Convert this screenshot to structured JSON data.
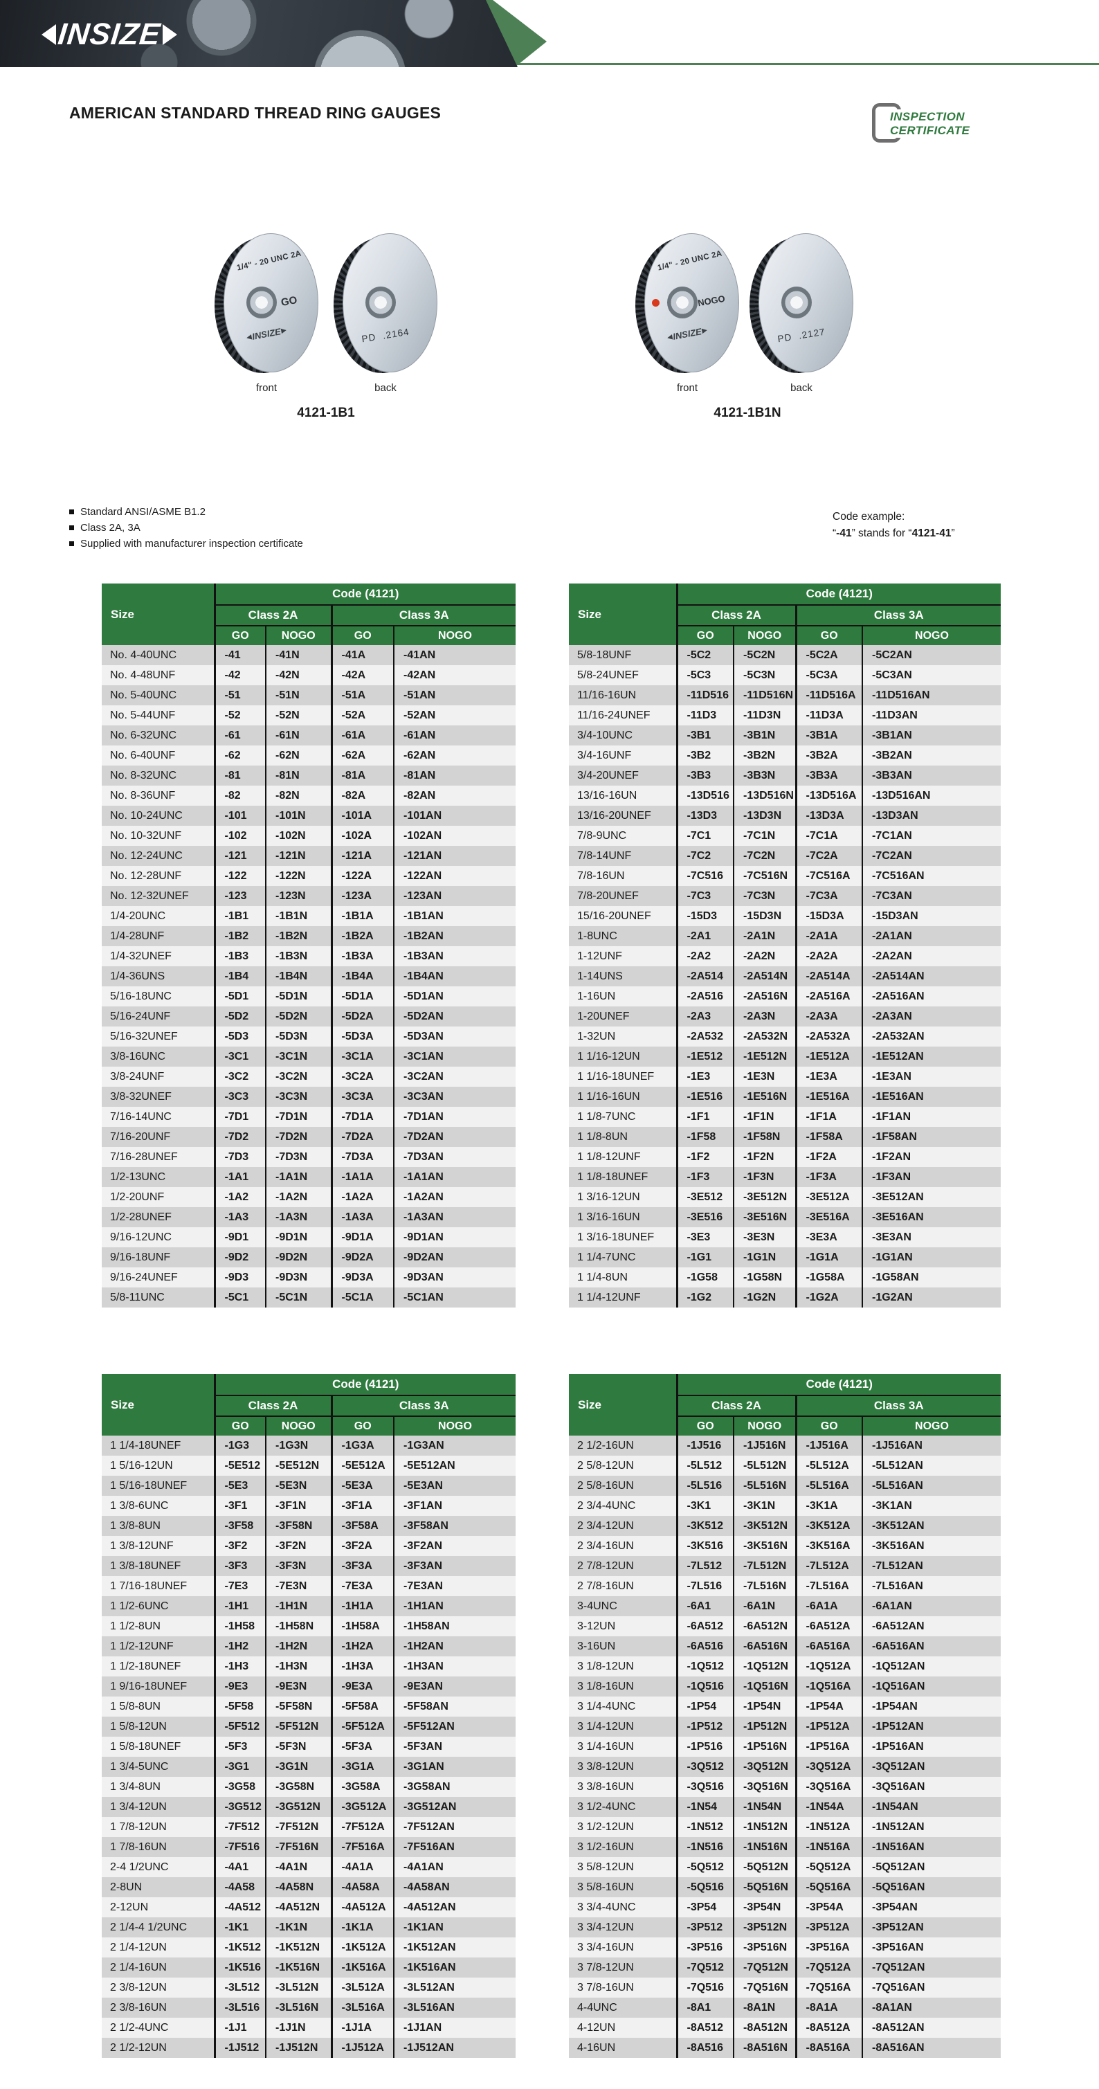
{
  "header": {
    "brand": "INSIZE",
    "page_title": "AMERICAN STANDARD THREAD RING GAUGES"
  },
  "badge": {
    "line1": "INSPECTION",
    "line2": "CERTIFICATE"
  },
  "products": [
    {
      "model": "4121-1B1",
      "front_label": "front",
      "back_label": "back",
      "spec": "1/4\" - 20 UNC 2A",
      "go_label": "GO",
      "brand": "INSIZE",
      "pd_label": "PD",
      "pd_value": ".2164"
    },
    {
      "model": "4121-1B1N",
      "front_label": "front",
      "back_label": "back",
      "spec": "1/4\" - 20 UNC 2A",
      "go_label": "NOGO",
      "brand": "INSIZE",
      "pd_label": "PD",
      "pd_value": ".2127"
    }
  ],
  "features": [
    "Standard ANSI/ASME B1.2",
    "Class 2A, 3A",
    "Supplied with manufacturer inspection certificate"
  ],
  "code_example": {
    "title": "Code example:",
    "parts": [
      "“",
      "-41",
      "” stands for “",
      "4121-41",
      "”"
    ]
  },
  "tables": {
    "header": {
      "size": "Size",
      "code": "Code (4121)",
      "class2a": "Class 2A",
      "class3a": "Class 3A",
      "go": "GO",
      "nogo": "NOGO"
    },
    "top_left": {
      "rows": [
        [
          "No. 4-40UNC",
          "-41",
          "-41N",
          "-41A",
          "-41AN"
        ],
        [
          "No. 4-48UNF",
          "-42",
          "-42N",
          "-42A",
          "-42AN"
        ],
        [
          "No. 5-40UNC",
          "-51",
          "-51N",
          "-51A",
          "-51AN"
        ],
        [
          "No. 5-44UNF",
          "-52",
          "-52N",
          "-52A",
          "-52AN"
        ],
        [
          "No. 6-32UNC",
          "-61",
          "-61N",
          "-61A",
          "-61AN"
        ],
        [
          "No. 6-40UNF",
          "-62",
          "-62N",
          "-62A",
          "-62AN"
        ],
        [
          "No. 8-32UNC",
          "-81",
          "-81N",
          "-81A",
          "-81AN"
        ],
        [
          "No. 8-36UNF",
          "-82",
          "-82N",
          "-82A",
          "-82AN"
        ],
        [
          "No. 10-24UNC",
          "-101",
          "-101N",
          "-101A",
          "-101AN"
        ],
        [
          "No. 10-32UNF",
          "-102",
          "-102N",
          "-102A",
          "-102AN"
        ],
        [
          "No. 12-24UNC",
          "-121",
          "-121N",
          "-121A",
          "-121AN"
        ],
        [
          "No. 12-28UNF",
          "-122",
          "-122N",
          "-122A",
          "-122AN"
        ],
        [
          "No. 12-32UNEF",
          "-123",
          "-123N",
          "-123A",
          "-123AN"
        ],
        [
          "1/4-20UNC",
          "-1B1",
          "-1B1N",
          "-1B1A",
          "-1B1AN"
        ],
        [
          "1/4-28UNF",
          "-1B2",
          "-1B2N",
          "-1B2A",
          "-1B2AN"
        ],
        [
          "1/4-32UNEF",
          "-1B3",
          "-1B3N",
          "-1B3A",
          "-1B3AN"
        ],
        [
          "1/4-36UNS",
          "-1B4",
          "-1B4N",
          "-1B4A",
          "-1B4AN"
        ],
        [
          "5/16-18UNC",
          "-5D1",
          "-5D1N",
          "-5D1A",
          "-5D1AN"
        ],
        [
          "5/16-24UNF",
          "-5D2",
          "-5D2N",
          "-5D2A",
          "-5D2AN"
        ],
        [
          "5/16-32UNEF",
          "-5D3",
          "-5D3N",
          "-5D3A",
          "-5D3AN"
        ],
        [
          "3/8-16UNC",
          "-3C1",
          "-3C1N",
          "-3C1A",
          "-3C1AN"
        ],
        [
          "3/8-24UNF",
          "-3C2",
          "-3C2N",
          "-3C2A",
          "-3C2AN"
        ],
        [
          "3/8-32UNEF",
          "-3C3",
          "-3C3N",
          "-3C3A",
          "-3C3AN"
        ],
        [
          "7/16-14UNC",
          "-7D1",
          "-7D1N",
          "-7D1A",
          "-7D1AN"
        ],
        [
          "7/16-20UNF",
          "-7D2",
          "-7D2N",
          "-7D2A",
          "-7D2AN"
        ],
        [
          "7/16-28UNEF",
          "-7D3",
          "-7D3N",
          "-7D3A",
          "-7D3AN"
        ],
        [
          "1/2-13UNC",
          "-1A1",
          "-1A1N",
          "-1A1A",
          "-1A1AN"
        ],
        [
          "1/2-20UNF",
          "-1A2",
          "-1A2N",
          "-1A2A",
          "-1A2AN"
        ],
        [
          "1/2-28UNEF",
          "-1A3",
          "-1A3N",
          "-1A3A",
          "-1A3AN"
        ],
        [
          "9/16-12UNC",
          "-9D1",
          "-9D1N",
          "-9D1A",
          "-9D1AN"
        ],
        [
          "9/16-18UNF",
          "-9D2",
          "-9D2N",
          "-9D2A",
          "-9D2AN"
        ],
        [
          "9/16-24UNEF",
          "-9D3",
          "-9D3N",
          "-9D3A",
          "-9D3AN"
        ],
        [
          "5/8-11UNC",
          "-5C1",
          "-5C1N",
          "-5C1A",
          "-5C1AN"
        ]
      ]
    },
    "top_right": {
      "rows": [
        [
          "5/8-18UNF",
          "-5C2",
          "-5C2N",
          "-5C2A",
          "-5C2AN"
        ],
        [
          "5/8-24UNEF",
          "-5C3",
          "-5C3N",
          "-5C3A",
          "-5C3AN"
        ],
        [
          "11/16-16UN",
          "-11D516",
          "-11D516N",
          "-11D516A",
          "-11D516AN"
        ],
        [
          "11/16-24UNEF",
          "-11D3",
          "-11D3N",
          "-11D3A",
          "-11D3AN"
        ],
        [
          "3/4-10UNC",
          "-3B1",
          "-3B1N",
          "-3B1A",
          "-3B1AN"
        ],
        [
          "3/4-16UNF",
          "-3B2",
          "-3B2N",
          "-3B2A",
          "-3B2AN"
        ],
        [
          "3/4-20UNEF",
          "-3B3",
          "-3B3N",
          "-3B3A",
          "-3B3AN"
        ],
        [
          "13/16-16UN",
          "-13D516",
          "-13D516N",
          "-13D516A",
          "-13D516AN"
        ],
        [
          "13/16-20UNEF",
          "-13D3",
          "-13D3N",
          "-13D3A",
          "-13D3AN"
        ],
        [
          "7/8-9UNC",
          "-7C1",
          "-7C1N",
          "-7C1A",
          "-7C1AN"
        ],
        [
          "7/8-14UNF",
          "-7C2",
          "-7C2N",
          "-7C2A",
          "-7C2AN"
        ],
        [
          "7/8-16UN",
          "-7C516",
          "-7C516N",
          "-7C516A",
          "-7C516AN"
        ],
        [
          "7/8-20UNEF",
          "-7C3",
          "-7C3N",
          "-7C3A",
          "-7C3AN"
        ],
        [
          "15/16-20UNEF",
          "-15D3",
          "-15D3N",
          "-15D3A",
          "-15D3AN"
        ],
        [
          "1-8UNC",
          "-2A1",
          "-2A1N",
          "-2A1A",
          "-2A1AN"
        ],
        [
          "1-12UNF",
          "-2A2",
          "-2A2N",
          "-2A2A",
          "-2A2AN"
        ],
        [
          "1-14UNS",
          "-2A514",
          "-2A514N",
          "-2A514A",
          "-2A514AN"
        ],
        [
          "1-16UN",
          "-2A516",
          "-2A516N",
          "-2A516A",
          "-2A516AN"
        ],
        [
          "1-20UNEF",
          "-2A3",
          "-2A3N",
          "-2A3A",
          "-2A3AN"
        ],
        [
          "1-32UN",
          "-2A532",
          "-2A532N",
          "-2A532A",
          "-2A532AN"
        ],
        [
          "1 1/16-12UN",
          "-1E512",
          "-1E512N",
          "-1E512A",
          "-1E512AN"
        ],
        [
          "1 1/16-18UNEF",
          "-1E3",
          "-1E3N",
          "-1E3A",
          "-1E3AN"
        ],
        [
          "1 1/16-16UN",
          "-1E516",
          "-1E516N",
          "-1E516A",
          "-1E516AN"
        ],
        [
          "1 1/8-7UNC",
          "-1F1",
          "-1F1N",
          "-1F1A",
          "-1F1AN"
        ],
        [
          "1 1/8-8UN",
          "-1F58",
          "-1F58N",
          "-1F58A",
          "-1F58AN"
        ],
        [
          "1 1/8-12UNF",
          "-1F2",
          "-1F2N",
          "-1F2A",
          "-1F2AN"
        ],
        [
          "1 1/8-18UNEF",
          "-1F3",
          "-1F3N",
          "-1F3A",
          "-1F3AN"
        ],
        [
          "1 3/16-12UN",
          "-3E512",
          "-3E512N",
          "-3E512A",
          "-3E512AN"
        ],
        [
          "1 3/16-16UN",
          "-3E516",
          "-3E516N",
          "-3E516A",
          "-3E516AN"
        ],
        [
          "1 3/16-18UNEF",
          "-3E3",
          "-3E3N",
          "-3E3A",
          "-3E3AN"
        ],
        [
          "1 1/4-7UNC",
          "-1G1",
          "-1G1N",
          "-1G1A",
          "-1G1AN"
        ],
        [
          "1 1/4-8UN",
          "-1G58",
          "-1G58N",
          "-1G58A",
          "-1G58AN"
        ],
        [
          "1 1/4-12UNF",
          "-1G2",
          "-1G2N",
          "-1G2A",
          "-1G2AN"
        ]
      ]
    },
    "bottom_left": {
      "rows": [
        [
          "1 1/4-18UNEF",
          "-1G3",
          "-1G3N",
          "-1G3A",
          "-1G3AN"
        ],
        [
          "1 5/16-12UN",
          "-5E512",
          "-5E512N",
          "-5E512A",
          "-5E512AN"
        ],
        [
          "1 5/16-18UNEF",
          "-5E3",
          "-5E3N",
          "-5E3A",
          "-5E3AN"
        ],
        [
          "1 3/8-6UNC",
          "-3F1",
          "-3F1N",
          "-3F1A",
          "-3F1AN"
        ],
        [
          "1 3/8-8UN",
          "-3F58",
          "-3F58N",
          "-3F58A",
          "-3F58AN"
        ],
        [
          "1 3/8-12UNF",
          "-3F2",
          "-3F2N",
          "-3F2A",
          "-3F2AN"
        ],
        [
          "1 3/8-18UNEF",
          "-3F3",
          "-3F3N",
          "-3F3A",
          "-3F3AN"
        ],
        [
          "1 7/16-18UNEF",
          "-7E3",
          "-7E3N",
          "-7E3A",
          "-7E3AN"
        ],
        [
          "1 1/2-6UNC",
          "-1H1",
          "-1H1N",
          "-1H1A",
          "-1H1AN"
        ],
        [
          "1 1/2-8UN",
          "-1H58",
          "-1H58N",
          "-1H58A",
          "-1H58AN"
        ],
        [
          "1 1/2-12UNF",
          "-1H2",
          "-1H2N",
          "-1H2A",
          "-1H2AN"
        ],
        [
          "1 1/2-18UNEF",
          "-1H3",
          "-1H3N",
          "-1H3A",
          "-1H3AN"
        ],
        [
          "1 9/16-18UNEF",
          "-9E3",
          "-9E3N",
          "-9E3A",
          "-9E3AN"
        ],
        [
          "1 5/8-8UN",
          "-5F58",
          "-5F58N",
          "-5F58A",
          "-5F58AN"
        ],
        [
          "1 5/8-12UN",
          "-5F512",
          "-5F512N",
          "-5F512A",
          "-5F512AN"
        ],
        [
          "1 5/8-18UNEF",
          "-5F3",
          "-5F3N",
          "-5F3A",
          "-5F3AN"
        ],
        [
          "1 3/4-5UNC",
          "-3G1",
          "-3G1N",
          "-3G1A",
          "-3G1AN"
        ],
        [
          "1 3/4-8UN",
          "-3G58",
          "-3G58N",
          "-3G58A",
          "-3G58AN"
        ],
        [
          "1 3/4-12UN",
          "-3G512",
          "-3G512N",
          "-3G512A",
          "-3G512AN"
        ],
        [
          "1 7/8-12UN",
          "-7F512",
          "-7F512N",
          "-7F512A",
          "-7F512AN"
        ],
        [
          "1 7/8-16UN",
          "-7F516",
          "-7F516N",
          "-7F516A",
          "-7F516AN"
        ],
        [
          "2-4 1/2UNC",
          "-4A1",
          "-4A1N",
          "-4A1A",
          "-4A1AN"
        ],
        [
          "2-8UN",
          "-4A58",
          "-4A58N",
          "-4A58A",
          "-4A58AN"
        ],
        [
          "2-12UN",
          "-4A512",
          "-4A512N",
          "-4A512A",
          "-4A512AN"
        ],
        [
          "2 1/4-4 1/2UNC",
          "-1K1",
          "-1K1N",
          "-1K1A",
          "-1K1AN"
        ],
        [
          "2 1/4-12UN",
          "-1K512",
          "-1K512N",
          "-1K512A",
          "-1K512AN"
        ],
        [
          "2 1/4-16UN",
          "-1K516",
          "-1K516N",
          "-1K516A",
          "-1K516AN"
        ],
        [
          "2 3/8-12UN",
          "-3L512",
          "-3L512N",
          "-3L512A",
          "-3L512AN"
        ],
        [
          "2 3/8-16UN",
          "-3L516",
          "-3L516N",
          "-3L516A",
          "-3L516AN"
        ],
        [
          "2 1/2-4UNC",
          "-1J1",
          "-1J1N",
          "-1J1A",
          "-1J1AN"
        ],
        [
          "2 1/2-12UN",
          "-1J512",
          "-1J512N",
          "-1J512A",
          "-1J512AN"
        ]
      ]
    },
    "bottom_right": {
      "rows": [
        [
          "2 1/2-16UN",
          "-1J516",
          "-1J516N",
          "-1J516A",
          "-1J516AN"
        ],
        [
          "2 5/8-12UN",
          "-5L512",
          "-5L512N",
          "-5L512A",
          "-5L512AN"
        ],
        [
          "2 5/8-16UN",
          "-5L516",
          "-5L516N",
          "-5L516A",
          "-5L516AN"
        ],
        [
          "2 3/4-4UNC",
          "-3K1",
          "-3K1N",
          "-3K1A",
          "-3K1AN"
        ],
        [
          "2 3/4-12UN",
          "-3K512",
          "-3K512N",
          "-3K512A",
          "-3K512AN"
        ],
        [
          "2 3/4-16UN",
          "-3K516",
          "-3K516N",
          "-3K516A",
          "-3K516AN"
        ],
        [
          "2 7/8-12UN",
          "-7L512",
          "-7L512N",
          "-7L512A",
          "-7L512AN"
        ],
        [
          "2 7/8-16UN",
          "-7L516",
          "-7L516N",
          "-7L516A",
          "-7L516AN"
        ],
        [
          "3-4UNC",
          "-6A1",
          "-6A1N",
          "-6A1A",
          "-6A1AN"
        ],
        [
          "3-12UN",
          "-6A512",
          "-6A512N",
          "-6A512A",
          "-6A512AN"
        ],
        [
          "3-16UN",
          "-6A516",
          "-6A516N",
          "-6A516A",
          "-6A516AN"
        ],
        [
          "3 1/8-12UN",
          "-1Q512",
          "-1Q512N",
          "-1Q512A",
          "-1Q512AN"
        ],
        [
          "3 1/8-16UN",
          "-1Q516",
          "-1Q516N",
          "-1Q516A",
          "-1Q516AN"
        ],
        [
          "3 1/4-4UNC",
          "-1P54",
          "-1P54N",
          "-1P54A",
          "-1P54AN"
        ],
        [
          "3 1/4-12UN",
          "-1P512",
          "-1P512N",
          "-1P512A",
          "-1P512AN"
        ],
        [
          "3 1/4-16UN",
          "-1P516",
          "-1P516N",
          "-1P516A",
          "-1P516AN"
        ],
        [
          "3 3/8-12UN",
          "-3Q512",
          "-3Q512N",
          "-3Q512A",
          "-3Q512AN"
        ],
        [
          "3 3/8-16UN",
          "-3Q516",
          "-3Q516N",
          "-3Q516A",
          "-3Q516AN"
        ],
        [
          "3 1/2-4UNC",
          "-1N54",
          "-1N54N",
          "-1N54A",
          "-1N54AN"
        ],
        [
          "3 1/2-12UN",
          "-1N512",
          "-1N512N",
          "-1N512A",
          "-1N512AN"
        ],
        [
          "3 1/2-16UN",
          "-1N516",
          "-1N516N",
          "-1N516A",
          "-1N516AN"
        ],
        [
          "3 5/8-12UN",
          "-5Q512",
          "-5Q512N",
          "-5Q512A",
          "-5Q512AN"
        ],
        [
          "3 5/8-16UN",
          "-5Q516",
          "-5Q516N",
          "-5Q516A",
          "-5Q516AN"
        ],
        [
          "3 3/4-4UNC",
          "-3P54",
          "-3P54N",
          "-3P54A",
          "-3P54AN"
        ],
        [
          "3 3/4-12UN",
          "-3P512",
          "-3P512N",
          "-3P512A",
          "-3P512AN"
        ],
        [
          "3 3/4-16UN",
          "-3P516",
          "-3P516N",
          "-3P516A",
          "-3P516AN"
        ],
        [
          "3 7/8-12UN",
          "-7Q512",
          "-7Q512N",
          "-7Q512A",
          "-7Q512AN"
        ],
        [
          "3 7/8-16UN",
          "-7Q516",
          "-7Q516N",
          "-7Q516A",
          "-7Q516AN"
        ],
        [
          "4-4UNC",
          "-8A1",
          "-8A1N",
          "-8A1A",
          "-8A1AN"
        ],
        [
          "4-12UN",
          "-8A512",
          "-8A512N",
          "-8A512A",
          "-8A512AN"
        ],
        [
          "4-16UN",
          "-8A516",
          "-8A516N",
          "-8A516A",
          "-8A516AN"
        ]
      ]
    }
  },
  "colors": {
    "green": "#2f7a3e",
    "band_green": "#4d8055",
    "row_dark": "#d3d3d3",
    "row_light": "#f1f1f1",
    "red": "#d8391c"
  }
}
